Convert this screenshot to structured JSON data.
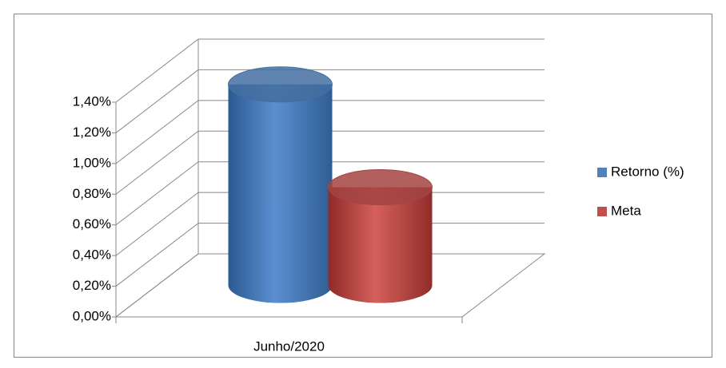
{
  "chart_data": {
    "type": "bar3d",
    "categories": [
      "Junho/2020"
    ],
    "series": [
      {
        "name": "Retorno (%)",
        "color": "#4f81bd",
        "values": [
          1.31
        ]
      },
      {
        "name": "Meta",
        "color": "#c0504d",
        "values": [
          0.64
        ]
      }
    ],
    "ylim": [
      0,
      1.4
    ],
    "yticks": [
      {
        "value": 0,
        "label": "0,00%"
      },
      {
        "value": 0.2,
        "label": "0,20%"
      },
      {
        "value": 0.4,
        "label": "0,40%"
      },
      {
        "value": 0.6,
        "label": "0,60%"
      },
      {
        "value": 0.8,
        "label": "0,80%"
      },
      {
        "value": 1.0,
        "label": "1,00%"
      },
      {
        "value": 1.2,
        "label": "1,20%"
      },
      {
        "value": 1.4,
        "label": "1,40%"
      }
    ],
    "grid": true,
    "legend": "right"
  }
}
